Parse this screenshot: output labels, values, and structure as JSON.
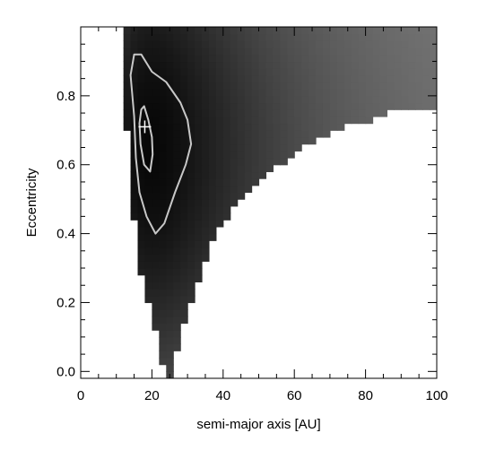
{
  "chart_data": {
    "type": "heatmap",
    "title": "",
    "xlabel": "semi-major axis [AU]",
    "ylabel": "Eccentricity",
    "xlim": [
      0,
      100
    ],
    "ylim": [
      -0.02,
      1.0
    ],
    "x_ticks": [
      0,
      20,
      40,
      60,
      80,
      100
    ],
    "x_tick_labels": [
      "0",
      "20",
      "40",
      "60",
      "80",
      "100"
    ],
    "y_ticks": [
      0.0,
      0.2,
      0.4,
      0.6,
      0.8
    ],
    "y_tick_labels": [
      "0.0",
      "0.2",
      "0.4",
      "0.6",
      "0.8"
    ],
    "colormap": "grayscale (dark = high probability)",
    "region_boundary": {
      "left_edge": [
        [
          25,
          -0.02
        ],
        [
          22.5,
          0.1
        ],
        [
          20,
          0.2
        ],
        [
          17.5,
          0.3
        ],
        [
          16.5,
          0.4
        ],
        [
          15.5,
          0.5
        ],
        [
          15,
          0.6
        ],
        [
          14,
          0.7
        ],
        [
          13.5,
          0.8
        ],
        [
          12.5,
          0.92
        ],
        [
          12.5,
          1.0
        ]
      ],
      "right_edge": [
        [
          25,
          -0.02
        ],
        [
          25,
          0.03
        ],
        [
          27,
          0.1
        ],
        [
          30,
          0.2
        ],
        [
          33,
          0.3
        ],
        [
          36,
          0.38
        ],
        [
          40,
          0.45
        ],
        [
          45,
          0.52
        ],
        [
          50,
          0.56
        ],
        [
          55,
          0.6
        ],
        [
          60,
          0.64
        ],
        [
          65,
          0.67
        ],
        [
          70,
          0.7
        ],
        [
          75,
          0.72
        ],
        [
          80,
          0.73
        ],
        [
          85,
          0.75
        ],
        [
          90,
          0.76
        ],
        [
          95,
          0.77
        ],
        [
          100,
          0.77
        ]
      ]
    },
    "peak": {
      "x": 20,
      "y": 0.65
    },
    "contours": [
      {
        "level": "inner",
        "points": [
          [
            17,
            0.76
          ],
          [
            16.5,
            0.72
          ],
          [
            16.8,
            0.66
          ],
          [
            17.8,
            0.6
          ],
          [
            19.5,
            0.58
          ],
          [
            20.2,
            0.63
          ],
          [
            20,
            0.68
          ],
          [
            19,
            0.73
          ],
          [
            17.8,
            0.77
          ],
          [
            17,
            0.76
          ]
        ]
      },
      {
        "level": "outer",
        "points": [
          [
            15,
            0.92
          ],
          [
            14,
            0.86
          ],
          [
            15,
            0.74
          ],
          [
            15.5,
            0.62
          ],
          [
            16.5,
            0.52
          ],
          [
            18.5,
            0.45
          ],
          [
            21,
            0.4
          ],
          [
            23.5,
            0.43
          ],
          [
            26.5,
            0.52
          ],
          [
            29.5,
            0.6
          ],
          [
            31,
            0.66
          ],
          [
            30,
            0.73
          ],
          [
            28,
            0.78
          ],
          [
            24,
            0.84
          ],
          [
            20,
            0.87
          ],
          [
            17,
            0.92
          ],
          [
            15,
            0.92
          ]
        ]
      }
    ],
    "best_fit_marker": {
      "x": 18,
      "y": 0.71
    },
    "grid": false,
    "legend": "none"
  }
}
